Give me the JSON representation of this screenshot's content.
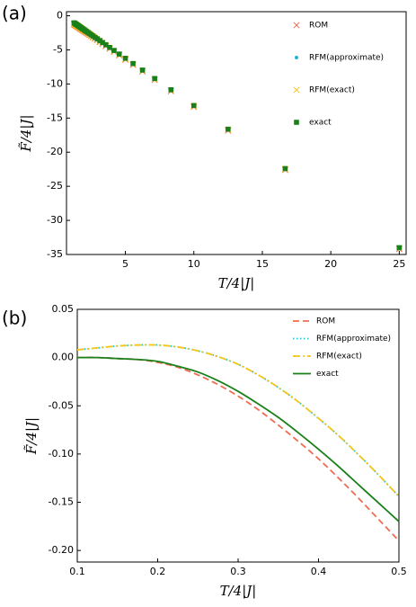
{
  "chart_data": [
    {
      "type": "scatter",
      "panel_label": "(a)",
      "xlabel": "T/4|J|",
      "ylabel": "F̃/4|J|",
      "xlim": [
        0.7,
        25.5
      ],
      "ylim": [
        -35,
        0.6
      ],
      "xticks": [
        5,
        10,
        15,
        20,
        25
      ],
      "yticks": [
        0,
        -5,
        -10,
        -15,
        -20,
        -25,
        -30,
        -35
      ],
      "x": [
        25,
        16.67,
        12.5,
        10,
        8.33,
        7.14,
        6.25,
        5.56,
        5,
        4.55,
        4.17,
        3.85,
        3.57,
        3.33,
        3.13,
        2.94,
        2.78,
        2.63,
        2.5,
        2.38,
        2.27,
        2.17,
        2.08,
        2,
        1.92,
        1.85,
        1.79,
        1.72,
        1.67,
        1.61,
        1.56,
        1.52,
        1.47,
        1.43,
        1.39,
        1.35,
        1.32,
        1.28,
        1.25
      ],
      "series": [
        {
          "name": "ROM",
          "color": "#f26b50",
          "marker": "x",
          "values": [
            -34.2,
            -22.6,
            -16.83,
            -13.36,
            -11.05,
            -9.4,
            -8.16,
            -7.2,
            -6.43,
            -5.81,
            -5.28,
            -4.84,
            -4.45,
            -4.12,
            -3.84,
            -3.57,
            -3.35,
            -3.15,
            -2.97,
            -2.8,
            -2.65,
            -2.51,
            -2.39,
            -2.27,
            -2.16,
            -2.07,
            -1.98,
            -1.89,
            -1.81,
            -1.73,
            -1.66,
            -1.6,
            -1.54,
            -1.48,
            -1.43,
            -1.37,
            -1.33,
            -1.27,
            -1.23
          ]
        },
        {
          "name": "RFM(approximate)",
          "color": "#1fb3d8",
          "marker": "dot",
          "values": [
            -34.05,
            -22.5,
            -16.73,
            -13.26,
            -10.95,
            -9.3,
            -8.06,
            -7.1,
            -6.33,
            -5.71,
            -5.18,
            -4.74,
            -4.35,
            -4.02,
            -3.73,
            -3.47,
            -3.25,
            -3.05,
            -2.87,
            -2.7,
            -2.55,
            -2.41,
            -2.29,
            -2.17,
            -2.06,
            -1.97,
            -1.88,
            -1.79,
            -1.71,
            -1.63,
            -1.56,
            -1.5,
            -1.44,
            -1.38,
            -1.33,
            -1.27,
            -1.23,
            -1.17,
            -1.13
          ]
        },
        {
          "name": "RFM(exact)",
          "color": "#f5c518",
          "marker": "x",
          "values": [
            -34.05,
            -22.5,
            -16.73,
            -13.26,
            -10.95,
            -9.3,
            -8.06,
            -7.1,
            -6.33,
            -5.71,
            -5.18,
            -4.74,
            -4.35,
            -4.02,
            -3.73,
            -3.47,
            -3.25,
            -3.05,
            -2.87,
            -2.7,
            -2.55,
            -2.41,
            -2.29,
            -2.17,
            -2.06,
            -1.97,
            -1.88,
            -1.79,
            -1.71,
            -1.63,
            -1.56,
            -1.5,
            -1.44,
            -1.38,
            -1.33,
            -1.27,
            -1.23,
            -1.17,
            -1.13
          ]
        },
        {
          "name": "exact",
          "color": "#1a801a",
          "marker": "square",
          "values": [
            -34.0,
            -22.4,
            -16.63,
            -13.16,
            -10.85,
            -9.2,
            -7.96,
            -7.0,
            -6.23,
            -5.61,
            -5.08,
            -4.64,
            -4.25,
            -3.92,
            -3.63,
            -3.37,
            -3.15,
            -2.95,
            -2.77,
            -2.6,
            -2.45,
            -2.31,
            -2.19,
            -2.07,
            -1.96,
            -1.87,
            -1.78,
            -1.69,
            -1.61,
            -1.53,
            -1.46,
            -1.4,
            -1.34,
            -1.28,
            -1.23,
            -1.17,
            -1.13,
            -1.07,
            -1.03
          ]
        }
      ]
    },
    {
      "type": "line",
      "panel_label": "(b)",
      "xlabel": "T/4|J|",
      "ylabel": "F̃/4|J|",
      "xlim": [
        0.1,
        0.5
      ],
      "ylim": [
        -0.212,
        0.05
      ],
      "xticks": [
        0.1,
        0.2,
        0.3,
        0.4,
        0.5
      ],
      "yticks": [
        0.05,
        {
          "value": 0,
          "label": "0.00"
        },
        -0.05,
        {
          "value": -0.1,
          "label": "-0.10"
        },
        -0.15,
        {
          "value": -0.2,
          "label": "-0.20"
        }
      ],
      "x": [
        0.1,
        0.125,
        0.15,
        0.175,
        0.2,
        0.225,
        0.25,
        0.275,
        0.3,
        0.325,
        0.35,
        0.375,
        0.4,
        0.425,
        0.45,
        0.475,
        0.5
      ],
      "series": [
        {
          "name": "ROM",
          "color": "#f26b50",
          "dash": "7,4",
          "values": [
            0.0,
            0.0,
            -0.001,
            -0.002,
            -0.005,
            -0.01,
            -0.018,
            -0.028,
            -0.04,
            -0.054,
            -0.07,
            -0.087,
            -0.105,
            -0.125,
            -0.146,
            -0.168,
            -0.19
          ]
        },
        {
          "name": "RFM(approximate)",
          "color": "#1fc8d8",
          "dash": "1.5,2.5",
          "values": [
            0.008,
            0.01,
            0.012,
            0.013,
            0.013,
            0.011,
            0.007,
            0.001,
            -0.007,
            -0.018,
            -0.031,
            -0.046,
            -0.063,
            -0.081,
            -0.101,
            -0.122,
            -0.144
          ]
        },
        {
          "name": "RFM(exact)",
          "color": "#f5c518",
          "dash": "8,3,2,3",
          "values": [
            0.008,
            0.01,
            0.012,
            0.013,
            0.013,
            0.011,
            0.007,
            0.001,
            -0.007,
            -0.018,
            -0.031,
            -0.046,
            -0.063,
            -0.081,
            -0.101,
            -0.122,
            -0.144
          ]
        },
        {
          "name": "exact",
          "color": "#1a801a",
          "dash": "",
          "values": [
            0.0,
            0.0,
            -0.001,
            -0.002,
            -0.004,
            -0.009,
            -0.015,
            -0.024,
            -0.035,
            -0.048,
            -0.062,
            -0.078,
            -0.095,
            -0.113,
            -0.132,
            -0.151,
            -0.17
          ]
        }
      ]
    }
  ]
}
